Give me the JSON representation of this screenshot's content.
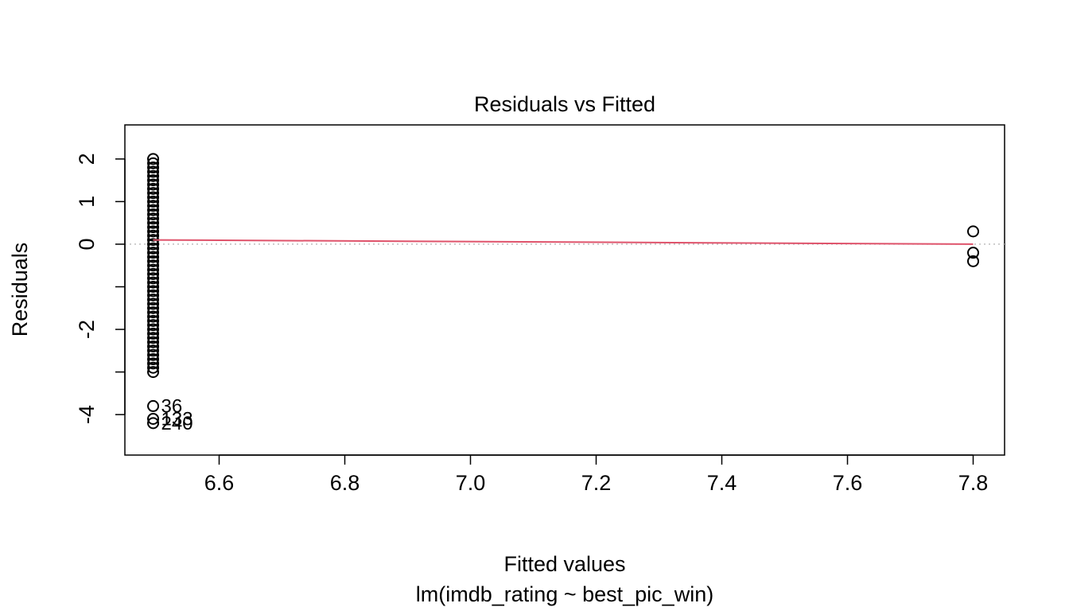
{
  "chart_data": {
    "type": "scatter",
    "title": "Residuals vs Fitted",
    "xlabel": "Fitted values",
    "sublabel": "lm(imdb_rating ~ best_pic_win)",
    "ylabel": "Residuals",
    "xlim": [
      6.45,
      7.85
    ],
    "ylim": [
      -4.95,
      2.8
    ],
    "xticks": [
      6.6,
      6.8,
      7.0,
      7.2,
      7.4,
      7.6,
      7.8
    ],
    "xtick_labels": [
      "6.6",
      "6.8",
      "7.0",
      "7.2",
      "7.4",
      "7.6",
      "7.8"
    ],
    "yticks": [
      2,
      1,
      0,
      -1,
      -2,
      -3,
      -4
    ],
    "ytick_labels": [
      "2",
      "1",
      "0",
      "",
      "-2",
      "",
      "-4"
    ],
    "reference_line": {
      "y": 0,
      "style": "dotted",
      "color": "#bebebe"
    },
    "smoother_color": "#df536b",
    "smoother": {
      "x": [
        6.495,
        7.8
      ],
      "y": [
        0.1,
        0.0
      ]
    },
    "series": [
      {
        "x_fitted": 6.495,
        "residuals": [
          2.0,
          1.9,
          1.8,
          1.7,
          1.6,
          1.5,
          1.4,
          1.3,
          1.2,
          1.1,
          1.0,
          0.9,
          0.8,
          0.7,
          0.6,
          0.5,
          0.4,
          0.3,
          0.2,
          0.1,
          0.0,
          -0.1,
          -0.2,
          -0.3,
          -0.4,
          -0.5,
          -0.6,
          -0.7,
          -0.8,
          -0.9,
          -1.0,
          -1.1,
          -1.2,
          -1.3,
          -1.4,
          -1.5,
          -1.6,
          -1.7,
          -1.8,
          -1.9,
          -2.0,
          -2.1,
          -2.2,
          -2.3,
          -2.4,
          -2.5,
          -2.6,
          -2.7,
          -2.8,
          -2.9,
          -3.0,
          -3.8,
          -4.1,
          -4.2
        ]
      },
      {
        "x_fitted": 7.8,
        "residuals": [
          0.3,
          -0.2,
          -0.4
        ]
      }
    ],
    "point_labels": [
      {
        "text": "36",
        "x": 6.495,
        "y": -3.8
      },
      {
        "text": "133",
        "x": 6.495,
        "y": -4.1
      },
      {
        "text": "240",
        "x": 6.495,
        "y": -4.2
      }
    ]
  }
}
